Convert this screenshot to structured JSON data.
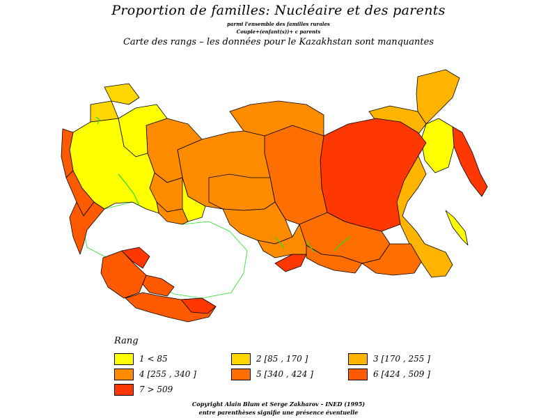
{
  "header": {
    "title": "Proportion de familles: Nucléaire et des parents",
    "subtitle1": "parmi l'ensemble des familles rurales",
    "subtitle2": "Couple+(enfant(s))+ c parents",
    "subtitle3": "Carte des rangs  –  les données pour le Kazakhstan sont manquantes"
  },
  "colors": {
    "class1": "#ffff00",
    "class2": "#ffd700",
    "class3": "#ffb400",
    "class4": "#ff8c00",
    "class5": "#ff6e00",
    "class6": "#ff5a00",
    "class7": "#ff3700",
    "missing": "#ffffff",
    "boundary_missing": "#00ee00",
    "water": "#22dd22",
    "outline": "#000000"
  },
  "legend": {
    "title": "Rang",
    "items": [
      {
        "label": "1  <  85",
        "color": "#ffff00"
      },
      {
        "label": "2 [85  ,  170  ]",
        "color": "#ffd700"
      },
      {
        "label": "3 [170  ,  255  ]",
        "color": "#ffb400"
      },
      {
        "label": "4 [255  ,  340  ]",
        "color": "#ff8c00"
      },
      {
        "label": "5 [340  ,  424  ]",
        "color": "#ff6e00"
      },
      {
        "label": "6 [424  ,  509  ]",
        "color": "#ff5a00"
      },
      {
        "label": "7  >  509",
        "color": "#ff3700"
      }
    ]
  },
  "footer": {
    "copyright": "Copyright  Alain  Blum  et  Serge  Zakharov  –  INED  (1995)",
    "note": "entre parenthèses signifie une présence éventuelle"
  }
}
